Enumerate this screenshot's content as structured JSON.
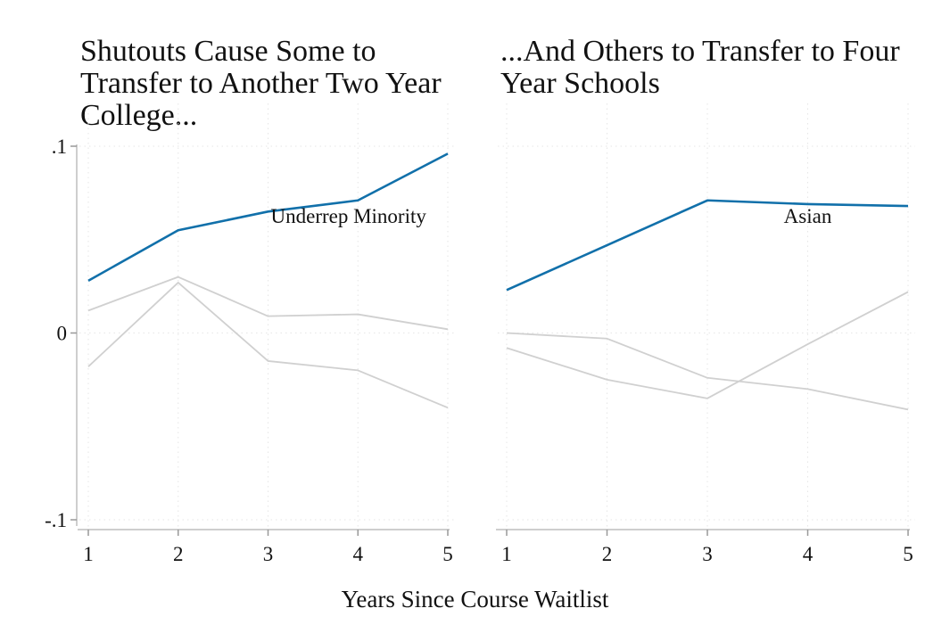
{
  "chart_data": [
    {
      "type": "line",
      "title": "Shutouts Cause Some to\nTransfer to Another Two Year\nCollege...",
      "x": [
        1,
        2,
        3,
        4,
        5
      ],
      "xticks": [
        "1",
        "2",
        "3",
        "4",
        "5"
      ],
      "yticks": [
        ".1",
        "0",
        "-.1"
      ],
      "ylim": [
        -0.1,
        0.1
      ],
      "xlim": [
        1,
        5
      ],
      "grid": true,
      "highlight_label": "Underrep Minority",
      "highlight_color": "#1170aa",
      "other_color": "#d0d0d0",
      "series": [
        {
          "name": "Underrep Minority",
          "highlight": true,
          "values": [
            0.028,
            0.055,
            0.065,
            0.071,
            0.096
          ]
        },
        {
          "highlight": false,
          "values": [
            0.012,
            0.03,
            0.009,
            0.01,
            0.002
          ]
        },
        {
          "highlight": false,
          "values": [
            -0.018,
            0.027,
            -0.015,
            -0.02,
            -0.04
          ]
        }
      ]
    },
    {
      "type": "line",
      "title": "...And Others to Transfer to Four\nYear Schools",
      "x": [
        1,
        2,
        3,
        4,
        5
      ],
      "xticks": [
        "1",
        "2",
        "3",
        "4",
        "5"
      ],
      "ylim": [
        -0.1,
        0.1
      ],
      "xlim": [
        1,
        5
      ],
      "grid": true,
      "highlight_label": "Asian",
      "highlight_color": "#1170aa",
      "other_color": "#d0d0d0",
      "series": [
        {
          "name": "Asian",
          "highlight": true,
          "values": [
            0.023,
            0.047,
            0.071,
            0.069,
            0.068
          ]
        },
        {
          "highlight": false,
          "values": [
            0.0,
            -0.003,
            -0.024,
            -0.03,
            -0.041
          ]
        },
        {
          "highlight": false,
          "values": [
            -0.008,
            -0.025,
            -0.035,
            -0.006,
            0.022
          ]
        }
      ]
    }
  ],
  "shared_xlabel": "Years Since Course Waitlist"
}
